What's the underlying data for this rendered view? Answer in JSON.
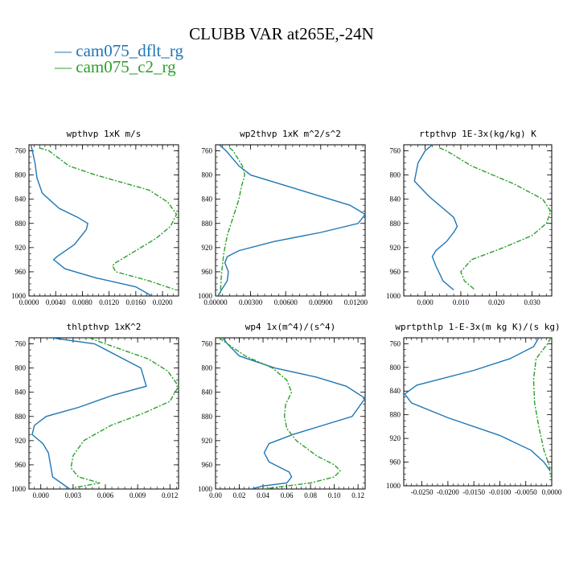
{
  "figure": {
    "title": "CLUBB VAR at265E,-24N",
    "legend": [
      {
        "label": "cam075_dflt_rg",
        "color": "#1f77b4",
        "style": "solid"
      },
      {
        "label": "cam075_c2_rg",
        "color": "#2ca02c",
        "style": "dashdot"
      }
    ]
  },
  "chart_data": [
    {
      "type": "line",
      "title": "wpthvp  1xK m/s",
      "ylim": [
        1000,
        750
      ],
      "yticks": [
        760,
        800,
        840,
        880,
        920,
        960,
        1000
      ],
      "ytick_labels": [
        "760",
        "800",
        "840",
        "880",
        "920",
        "960",
        "1000"
      ],
      "xlim": [
        0.0,
        0.0224
      ],
      "xticks": [
        0.0,
        0.004,
        0.008,
        0.012,
        0.016,
        0.02
      ],
      "xtick_labels": [
        "0.0000",
        "0.0040",
        "0.0080",
        "0.0120",
        "0.0160",
        "0.0200"
      ],
      "series": [
        {
          "name": "cam075_dflt_rg",
          "color": "#1f77b4",
          "dash": "",
          "x": [
            0.0003,
            0.0005,
            0.0009,
            0.0012,
            0.002,
            0.0045,
            0.0073,
            0.0088,
            0.0086,
            0.0068,
            0.0042,
            0.0037,
            0.0054,
            0.01,
            0.016,
            0.0184
          ],
          "y": [
            750,
            760,
            780,
            805,
            830,
            855,
            870,
            880,
            890,
            915,
            935,
            940,
            955,
            970,
            985,
            1000
          ]
        },
        {
          "name": "cam075_c2_rg",
          "color": "#2ca02c",
          "dash": "6,2,2,2",
          "x": [
            0.0015,
            0.003,
            0.006,
            0.01,
            0.018,
            0.0208,
            0.0221,
            0.0212,
            0.019,
            0.016,
            0.013,
            0.0125,
            0.013,
            0.018,
            0.022
          ],
          "y": [
            755,
            760,
            785,
            800,
            825,
            845,
            865,
            885,
            905,
            925,
            945,
            950,
            960,
            975,
            990
          ]
        }
      ]
    },
    {
      "type": "line",
      "title": "wp2thvp  1xK m^2/s^2",
      "ylim": [
        1000,
        750
      ],
      "yticks": [
        760,
        800,
        840,
        880,
        920,
        960,
        1000
      ],
      "ytick_labels": [
        "760",
        "800",
        "840",
        "880",
        "920",
        "960",
        "1000"
      ],
      "xlim": [
        0.0,
        0.0128
      ],
      "xticks": [
        0.0,
        0.003,
        0.006,
        0.009,
        0.012
      ],
      "xtick_labels": [
        "0.00000",
        "0.00300",
        "0.00600",
        "0.00900",
        "0.01200"
      ],
      "series": [
        {
          "name": "cam075_dflt_rg",
          "color": "#1f77b4",
          "dash": "",
          "x": [
            0.0003,
            0.0009,
            0.002,
            0.003,
            0.0115,
            0.0128,
            0.0122,
            0.009,
            0.005,
            0.002,
            0.001,
            0.0008,
            0.0011,
            0.001,
            0.0005,
            0.0002
          ],
          "y": [
            750,
            760,
            785,
            800,
            850,
            865,
            880,
            895,
            910,
            925,
            935,
            945,
            960,
            975,
            990,
            1000
          ]
        },
        {
          "name": "cam075_c2_rg",
          "color": "#2ca02c",
          "dash": "6,2,2,2",
          "x": [
            0.0012,
            0.0015,
            0.0023,
            0.0025,
            0.0022,
            0.002,
            0.0015,
            0.001,
            0.0007,
            0.0005,
            0.0004
          ],
          "y": [
            755,
            760,
            785,
            800,
            820,
            840,
            870,
            900,
            930,
            965,
            1000
          ]
        }
      ]
    },
    {
      "type": "line",
      "title": "rtpthvp  1E-3x(kg/kg) K",
      "ylim": [
        1000,
        750
      ],
      "yticks": [
        760,
        800,
        840,
        880,
        920,
        960,
        1000
      ],
      "ytick_labels": [
        "760",
        "800",
        "840",
        "880",
        "920",
        "960",
        "1000"
      ],
      "xlim": [
        -0.006,
        0.0355
      ],
      "xticks": [
        0.0,
        0.01,
        0.02,
        0.03
      ],
      "xtick_labels": [
        "0.000",
        "0.010",
        "0.020",
        "0.030"
      ],
      "series": [
        {
          "name": "cam075_dflt_rg",
          "color": "#1f77b4",
          "dash": "",
          "x": [
            0.002,
            0.0,
            -0.002,
            -0.003,
            0.001,
            0.005,
            0.008,
            0.009,
            0.008,
            0.006,
            0.003,
            0.002,
            0.003,
            0.005,
            0.008
          ],
          "y": [
            750,
            760,
            780,
            810,
            835,
            855,
            870,
            885,
            895,
            910,
            925,
            935,
            950,
            975,
            990
          ]
        },
        {
          "name": "cam075_c2_rg",
          "color": "#2ca02c",
          "dash": "6,2,2,2",
          "x": [
            0.004,
            0.006,
            0.013,
            0.025,
            0.033,
            0.0352,
            0.034,
            0.03,
            0.022,
            0.013,
            0.01,
            0.011,
            0.014
          ],
          "y": [
            755,
            760,
            785,
            815,
            840,
            860,
            880,
            900,
            920,
            940,
            960,
            975,
            990
          ]
        }
      ]
    },
    {
      "type": "line",
      "title": "thlpthvp  1xK^2",
      "ylim": [
        1000,
        750
      ],
      "yticks": [
        760,
        800,
        840,
        880,
        920,
        960,
        1000
      ],
      "ytick_labels": [
        "760",
        "800",
        "840",
        "880",
        "920",
        "960",
        "1000"
      ],
      "xlim": [
        -0.0011,
        0.0128
      ],
      "xticks": [
        0.0,
        0.003,
        0.006,
        0.009,
        0.012
      ],
      "xtick_labels": [
        "0.000",
        "0.003",
        "0.006",
        "0.009",
        "0.012"
      ],
      "series": [
        {
          "name": "cam075_dflt_rg",
          "color": "#1f77b4",
          "dash": "",
          "x": [
            0.001,
            0.005,
            0.0093,
            0.0098,
            0.0067,
            0.0035,
            0.0005,
            -0.0006,
            -0.0008,
            0.0002,
            0.0007,
            0.0009,
            0.0011,
            0.0019,
            0.0027
          ],
          "y": [
            750,
            760,
            800,
            830,
            845,
            865,
            880,
            895,
            910,
            925,
            940,
            960,
            980,
            990,
            1000
          ]
        },
        {
          "name": "cam075_c2_rg",
          "color": "#2ca02c",
          "dash": "6,2,2,2",
          "x": [
            0.0045,
            0.006,
            0.01,
            0.0118,
            0.0128,
            0.012,
            0.0095,
            0.0065,
            0.004,
            0.003,
            0.0028,
            0.0035,
            0.0055,
            0.003
          ],
          "y": [
            750,
            760,
            785,
            805,
            830,
            855,
            875,
            895,
            920,
            945,
            965,
            980,
            990,
            998
          ]
        }
      ]
    },
    {
      "type": "line",
      "title": "wp4  1x(m^4)/(s^4)",
      "ylim": [
        1000,
        750
      ],
      "yticks": [
        760,
        800,
        840,
        880,
        920,
        960,
        1000
      ],
      "ytick_labels": [
        "760",
        "800",
        "840",
        "880",
        "920",
        "960",
        "1000"
      ],
      "xlim": [
        0.0,
        0.126
      ],
      "xticks": [
        0.0,
        0.02,
        0.04,
        0.06,
        0.08,
        0.1,
        0.12
      ],
      "xtick_labels": [
        "0.00",
        "0.02",
        "0.04",
        "0.06",
        "0.08",
        "0.10",
        "0.12"
      ],
      "series": [
        {
          "name": "cam075_dflt_rg",
          "color": "#1f77b4",
          "dash": "",
          "x": [
            0.006,
            0.01,
            0.02,
            0.05,
            0.085,
            0.11,
            0.126,
            0.115,
            0.09,
            0.065,
            0.045,
            0.041,
            0.045,
            0.055,
            0.062,
            0.064,
            0.06,
            0.04,
            0.03
          ],
          "y": [
            750,
            760,
            780,
            800,
            815,
            830,
            850,
            880,
            895,
            910,
            925,
            940,
            955,
            965,
            972,
            980,
            990,
            995,
            1000
          ]
        },
        {
          "name": "cam075_c2_rg",
          "color": "#2ca02c",
          "dash": "6,2,2,2",
          "x": [
            0.003,
            0.01,
            0.025,
            0.048,
            0.06,
            0.064,
            0.059,
            0.058,
            0.06,
            0.068,
            0.085,
            0.1,
            0.105,
            0.1,
            0.08,
            0.06,
            0.04
          ],
          "y": [
            750,
            760,
            780,
            800,
            820,
            840,
            860,
            880,
            900,
            920,
            945,
            960,
            970,
            980,
            990,
            995,
            1000
          ]
        }
      ]
    },
    {
      "type": "line",
      "title": "wprtpthlp  1-E-3x(m kg K)/(s kg)",
      "ylim": [
        1000,
        750
      ],
      "yticks": [
        760,
        800,
        840,
        880,
        920,
        960,
        1000
      ],
      "ytick_labels": [
        "760",
        "800",
        "840",
        "880",
        "920",
        "960",
        "1000"
      ],
      "xlim": [
        -0.0285,
        0.0
      ],
      "xticks": [
        -0.025,
        -0.02,
        -0.015,
        -0.01,
        -0.005,
        0.0
      ],
      "xtick_labels": [
        "-0.0250",
        "-0.0200",
        "-0.0150",
        "-0.0100",
        "-0.0050",
        "0.0000"
      ],
      "series": [
        {
          "name": "cam075_dflt_rg",
          "color": "#1f77b4",
          "dash": "",
          "x": [
            -0.0025,
            -0.0035,
            -0.008,
            -0.015,
            -0.026,
            -0.0283,
            -0.027,
            -0.02,
            -0.01,
            -0.004,
            -0.0015,
            -0.0003
          ],
          "y": [
            750,
            765,
            785,
            805,
            830,
            845,
            860,
            885,
            915,
            940,
            960,
            975
          ]
        },
        {
          "name": "cam075_c2_rg",
          "color": "#2ca02c",
          "dash": "6,2,2,2",
          "x": [
            -0.0002,
            -0.0008,
            -0.003,
            -0.0035,
            -0.0033,
            -0.0025,
            -0.0015,
            -0.0005,
            -0.0002
          ],
          "y": [
            750,
            760,
            785,
            820,
            860,
            900,
            940,
            965,
            985
          ]
        }
      ]
    }
  ]
}
